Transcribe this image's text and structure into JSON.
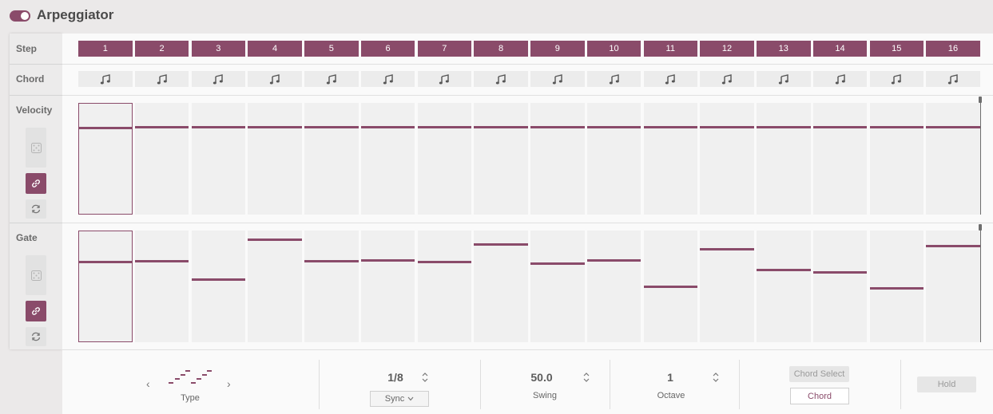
{
  "header": {
    "title": "Arpeggiator",
    "enabled": true
  },
  "labels": {
    "step": "Step",
    "chord": "Chord",
    "velocity": "Velocity",
    "gate": "Gate"
  },
  "steps": [
    "1",
    "2",
    "3",
    "4",
    "5",
    "6",
    "7",
    "8",
    "9",
    "10",
    "11",
    "12",
    "13",
    "14",
    "15",
    "16"
  ],
  "velocity": {
    "values": [
      0.79,
      0.79,
      0.79,
      0.79,
      0.79,
      0.79,
      0.79,
      0.79,
      0.79,
      0.79,
      0.79,
      0.79,
      0.79,
      0.79,
      0.79,
      0.79
    ],
    "selected_step": 1
  },
  "gate": {
    "values": [
      0.73,
      0.73,
      0.56,
      0.93,
      0.73,
      0.74,
      0.72,
      0.88,
      0.71,
      0.74,
      0.5,
      0.84,
      0.65,
      0.63,
      0.48,
      0.87
    ],
    "selected_step": 1
  },
  "controls": {
    "type": {
      "label": "Type"
    },
    "rate": {
      "value": "1/8",
      "sync_label": "Sync"
    },
    "swing": {
      "value": "50.0",
      "label": "Swing"
    },
    "octave": {
      "value": "1",
      "label": "Octave"
    },
    "chord_select": {
      "label": "Chord Select",
      "chord_label": "Chord"
    },
    "hold": {
      "label": "Hold"
    }
  },
  "colors": {
    "accent": "#8a4b6a",
    "cell": "#f0f0f0",
    "panel": "#fafafa"
  },
  "icons": {
    "chord": "music-note-icon",
    "randomize": "dice-icon",
    "link": "link-icon",
    "reset": "cycle-icon"
  }
}
